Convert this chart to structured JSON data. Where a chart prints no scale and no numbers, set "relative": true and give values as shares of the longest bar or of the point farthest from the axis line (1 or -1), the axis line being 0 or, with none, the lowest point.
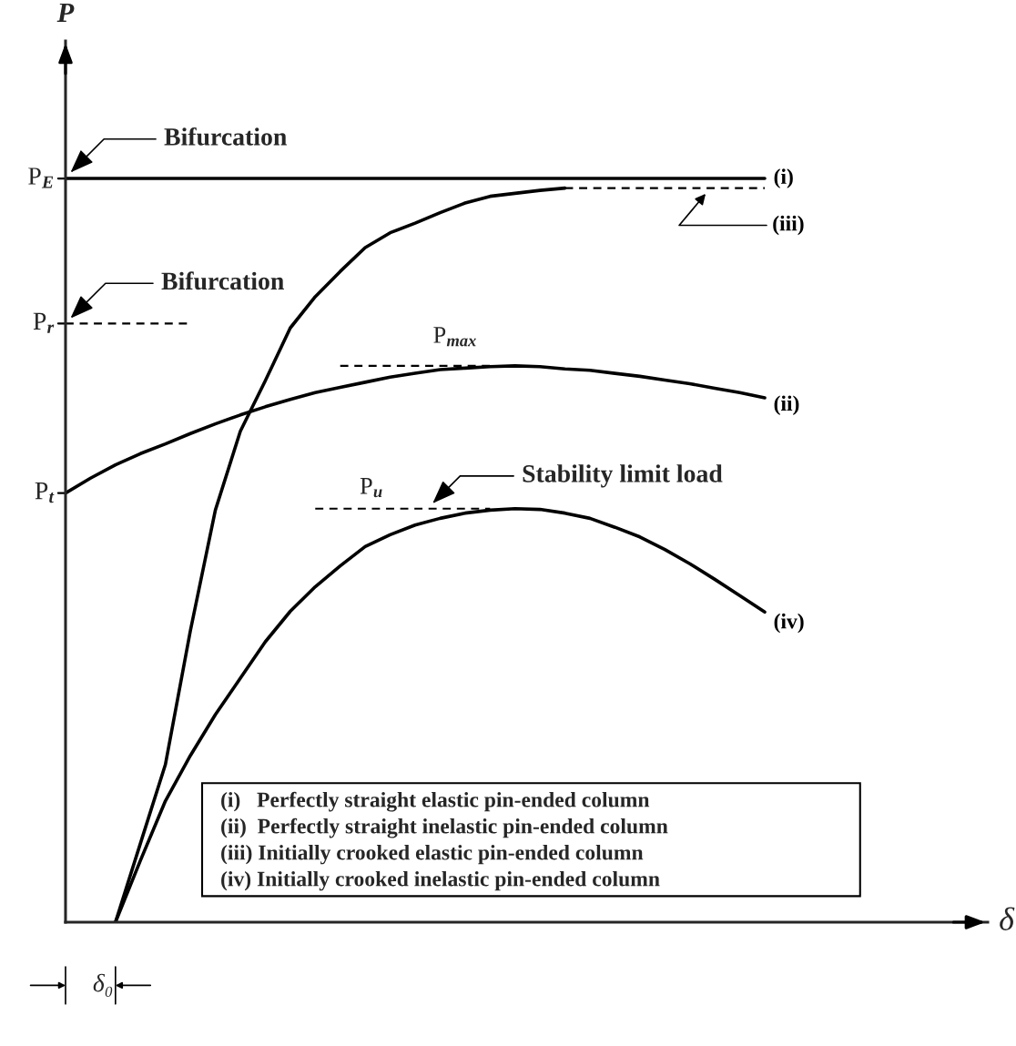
{
  "chart_data": {
    "type": "line",
    "relative": true,
    "categories": [
      null,
      null,
      null,
      null,
      null,
      null,
      null,
      null,
      null,
      null,
      null,
      null,
      null,
      null,
      null,
      null,
      null,
      null,
      null,
      null,
      null,
      null,
      null,
      null,
      null,
      null,
      null,
      null,
      null
    ],
    "series": [
      {
        "name": "(i)",
        "color": "#000000",
        "line_style": "solid",
        "values": [
          1,
          1,
          1,
          1,
          1,
          1,
          1,
          1,
          1,
          1,
          1,
          1,
          1,
          1,
          1,
          1,
          1,
          1,
          1,
          1,
          1,
          1,
          1,
          1,
          1,
          1,
          1,
          1,
          1
        ]
      },
      {
        "name": "(ii)",
        "color": "#000000",
        "line_style": "solid",
        "values": [
          0.577,
          0.597,
          0.615,
          0.63,
          0.643,
          0.657,
          0.67,
          0.682,
          0.693,
          0.703,
          0.712,
          0.719,
          0.726,
          0.733,
          0.738,
          0.743,
          0.745,
          0.747,
          0.748,
          0.747,
          0.744,
          0.742,
          0.738,
          0.734,
          0.729,
          0.724,
          0.718,
          0.712,
          0.705
        ]
      },
      {
        "color": "#000000",
        "line_style": "solid",
        "values": [
          null,
          null,
          0,
          0.106,
          0.212,
          0.392,
          0.554,
          0.66,
          0.728,
          0.799,
          0.841,
          0.875,
          0.907,
          0.927,
          0.94,
          0.954,
          0.967,
          0.976,
          0.98,
          0.984,
          0.987,
          null,
          null,
          null,
          null,
          null,
          null,
          null,
          null
        ]
      },
      {
        "name": "(iii)",
        "color": "#000000",
        "line_style": "dashed",
        "values": [
          null,
          null,
          null,
          null,
          null,
          null,
          null,
          null,
          null,
          null,
          null,
          null,
          null,
          null,
          null,
          null,
          null,
          null,
          null,
          null,
          0.987,
          0.987,
          0.987,
          0.987,
          0.987,
          0.987,
          0.987,
          0.987,
          0.987
        ]
      },
      {
        "name": "(iv)",
        "color": "#000000",
        "line_style": "solid",
        "values": [
          null,
          null,
          0,
          0.083,
          0.163,
          0.224,
          0.279,
          0.328,
          0.377,
          0.418,
          0.451,
          0.479,
          0.505,
          0.521,
          0.534,
          0.543,
          0.55,
          0.554,
          0.556,
          0.555,
          0.55,
          0.543,
          0.531,
          0.518,
          0.501,
          0.482,
          0.461,
          0.439,
          0.417
        ]
      },
      {
        "color": "#000000",
        "line_style": "dashed",
        "values": [
          0.805,
          0.805,
          0.805,
          0.805,
          0.805,
          0.805,
          null,
          null,
          null,
          null,
          null,
          null,
          null,
          null,
          null,
          null,
          null,
          null,
          null,
          null,
          null,
          null,
          null,
          null,
          null,
          null,
          null,
          null,
          null
        ]
      },
      {
        "color": "#000000",
        "line_style": "dashed",
        "values": [
          null,
          null,
          null,
          null,
          null,
          null,
          null,
          null,
          null,
          null,
          null,
          0.748,
          0.748,
          0.748,
          0.748,
          0.748,
          0.748,
          0.748,
          null,
          null,
          null,
          null,
          null,
          null,
          null,
          null,
          null,
          null,
          null
        ]
      },
      {
        "color": "#000000",
        "line_style": "dashed",
        "values": [
          null,
          null,
          null,
          null,
          null,
          null,
          null,
          null,
          null,
          null,
          0.556,
          0.556,
          0.556,
          0.556,
          0.556,
          0.556,
          0.556,
          0.556,
          null,
          null,
          null,
          null,
          null,
          null,
          null,
          null,
          null,
          null,
          null
        ]
      }
    ],
    "annotations": [
      "P$_{E}$",
      "P$_{r}$",
      "P$_{t}$",
      "Bifurcation",
      "Bifurcation",
      "P$_{max}$",
      "P$_{u}$",
      "Stability limit load",
      "δ₀",
      "(i)   Perfectly straight elastic pin-ended column",
      "(ii)  Perfectly straight inelastic pin-ended column",
      "(iii) Initially crooked elastic pin-ended column",
      "(iv) Initially crooked inelastic pin-ended column",
      "δ",
      "P"
    ]
  }
}
